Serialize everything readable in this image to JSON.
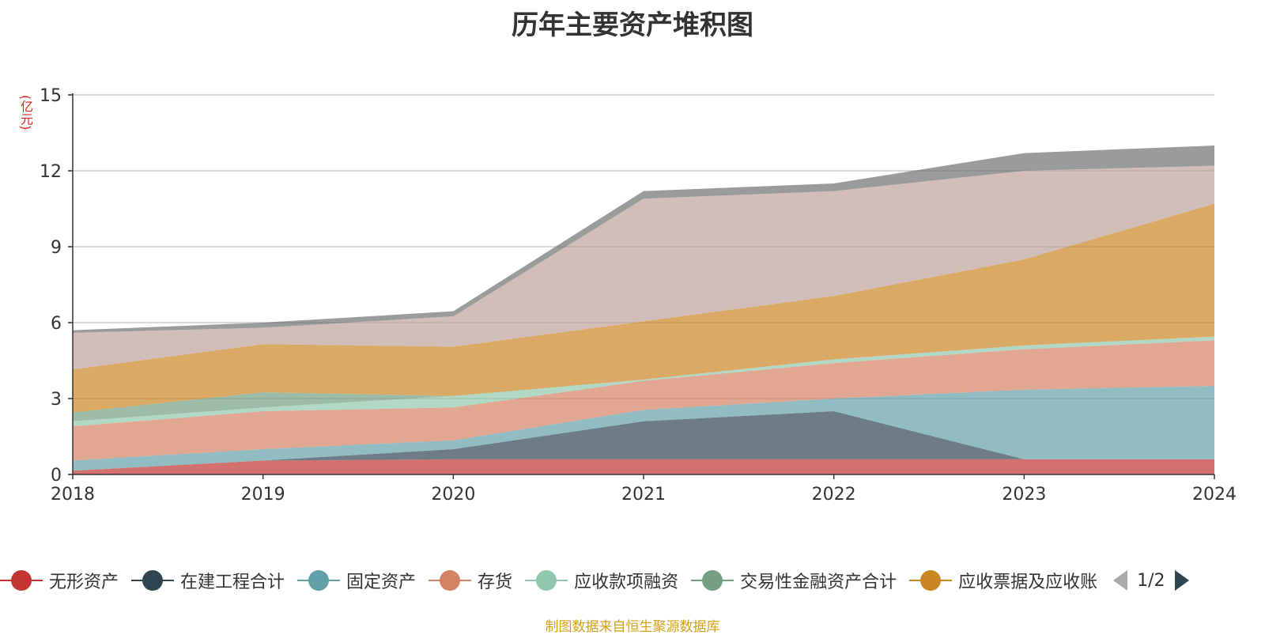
{
  "chart_data": {
    "type": "area",
    "stacked": true,
    "title": "历年主要资产堆积图",
    "unit": "(亿元)",
    "x": [
      "2018",
      "2019",
      "2020",
      "2021",
      "2022",
      "2023",
      "2024"
    ],
    "ylim": [
      0,
      15
    ],
    "yticks": [
      0,
      3,
      6,
      9,
      12,
      15
    ],
    "grid": true,
    "legend_position": "bottom",
    "series": [
      {
        "name": "无形资产",
        "color": "#c23531",
        "values": [
          0.15,
          0.55,
          0.6,
          0.6,
          0.6,
          0.6,
          0.6
        ]
      },
      {
        "name": "在建工程合计",
        "color": "#2f4554",
        "values": [
          0.0,
          0.0,
          0.4,
          1.5,
          1.9,
          0.0,
          0.0
        ]
      },
      {
        "name": "固定资产",
        "color": "#61a0a8",
        "values": [
          0.4,
          0.45,
          0.35,
          0.45,
          0.5,
          2.75,
          2.9
        ]
      },
      {
        "name": "存货",
        "color": "#d48265",
        "values": [
          1.35,
          1.5,
          1.3,
          1.15,
          1.4,
          1.6,
          1.8
        ]
      },
      {
        "name": "应收款项融资",
        "color": "#91c7ae",
        "values": [
          0.2,
          0.15,
          0.45,
          0.05,
          0.15,
          0.15,
          0.15
        ]
      },
      {
        "name": "交易性金融资产合计",
        "color": "#749f83",
        "values": [
          0.35,
          0.6,
          0.0,
          0.0,
          0.0,
          0.0,
          0.0
        ]
      },
      {
        "name": "应收票据及应收账",
        "color": "#ca8622",
        "values": [
          1.7,
          1.9,
          1.95,
          2.3,
          2.5,
          3.4,
          5.25
        ]
      },
      {
        "name": "",
        "color": "#bda29a",
        "values": [
          1.45,
          0.65,
          1.2,
          4.85,
          4.15,
          3.5,
          1.5
        ]
      },
      {
        "name": "",
        "color": "#6e7074",
        "values": [
          0.1,
          0.2,
          0.2,
          0.3,
          0.3,
          0.7,
          0.8
        ]
      }
    ],
    "legend_page": "1/2"
  },
  "source_note": "制图数据来自恒生聚源数据库"
}
